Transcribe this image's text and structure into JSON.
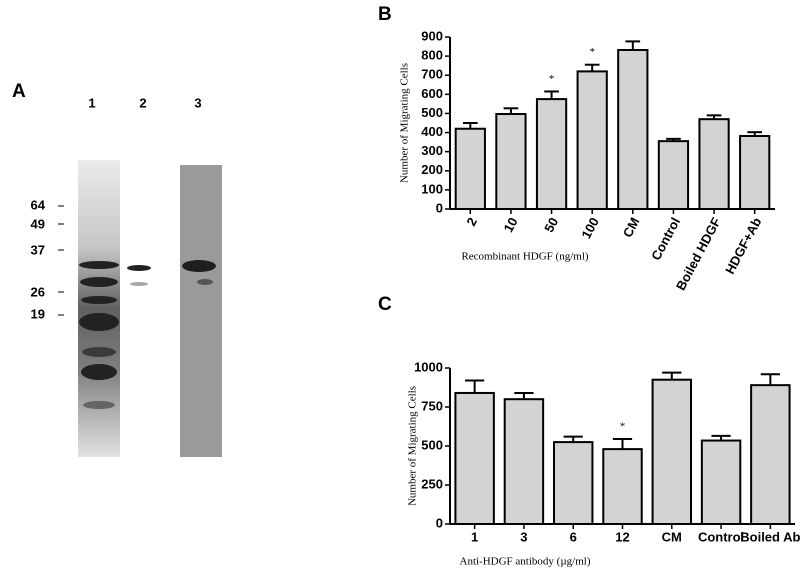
{
  "panel_a": {
    "label": "A",
    "lanes": [
      "1",
      "2",
      "3"
    ],
    "markers": [
      "64",
      "49",
      "37",
      "26",
      "19"
    ]
  },
  "chart_data": [
    {
      "type": "bar",
      "panel": "B",
      "ylabel": "Number of Migrating Cells",
      "xlabel": "Recombinant HDGF (ng/ml)",
      "categories": [
        "2",
        "10",
        "50",
        "100",
        "CM",
        "Control",
        "Boiled HDGF",
        "HDGF+Ab"
      ],
      "values": [
        420,
        497,
        575,
        720,
        832,
        355,
        470,
        382
      ],
      "errors": [
        30,
        30,
        40,
        35,
        45,
        12,
        20,
        20
      ],
      "markers": [
        null,
        null,
        "*",
        "*",
        null,
        null,
        null,
        null
      ],
      "color": "#d3d3d3",
      "ylim": [
        0,
        900
      ],
      "yticks": [
        0,
        100,
        200,
        300,
        400,
        500,
        600,
        700,
        800,
        900
      ]
    },
    {
      "type": "bar",
      "panel": "C",
      "ylabel": "Number of Migrating Cells",
      "xlabel": "Anti-HDGF antibody (µg/ml)",
      "categories": [
        "1",
        "3",
        "6",
        "12",
        "CM",
        "Control",
        "Boiled Ab"
      ],
      "values": [
        840,
        800,
        525,
        480,
        925,
        535,
        890
      ],
      "errors": [
        80,
        40,
        35,
        65,
        45,
        30,
        70
      ],
      "markers": [
        null,
        null,
        null,
        "*",
        null,
        null,
        null
      ],
      "color": "#d3d3d3",
      "ylim": [
        0,
        1000
      ],
      "yticks": [
        0,
        250,
        500,
        750,
        1000
      ]
    }
  ]
}
